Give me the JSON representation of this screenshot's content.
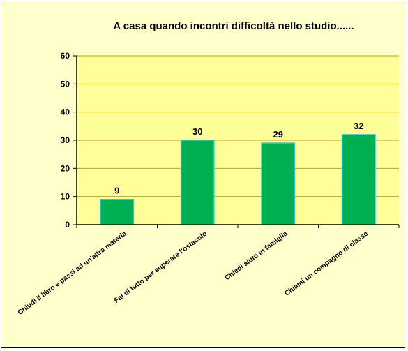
{
  "chart_data": {
    "type": "bar",
    "title": "A casa quando incontri difficoltà nello studio......",
    "categories": [
      "Chiudi il libro e passi ad un'altra materia",
      "Fai di tutto per superare l'ostacolo",
      "Chiedi aiuto in famiglia",
      "Chiami un compagno di classe"
    ],
    "values": [
      9,
      30,
      29,
      32
    ],
    "data_labels": [
      "9",
      "30",
      "29",
      "32"
    ],
    "ylim": [
      0,
      60
    ],
    "yticks": [
      0,
      10,
      20,
      30,
      40,
      50,
      60
    ],
    "ytick_labels": [
      "0",
      "10",
      "20",
      "30",
      "40",
      "50",
      "60"
    ],
    "xlabel": "",
    "ylabel": "",
    "grid": true,
    "legend": "none",
    "colors": {
      "bar": "#00b050",
      "bar_edge": "#39c8c8",
      "plot_background": "#ffff99",
      "chart_background": "#ffffcc",
      "gridline": "#c8a000"
    }
  }
}
